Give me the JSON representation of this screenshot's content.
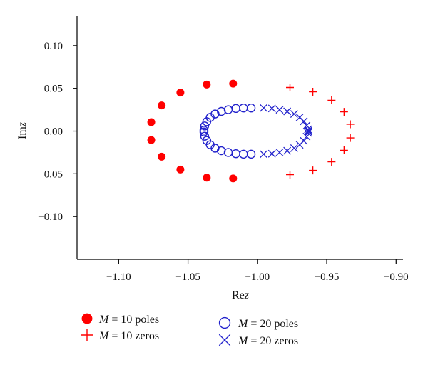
{
  "chart_data": {
    "type": "scatter",
    "xlabel": {
      "prefix": "Re",
      "var": "z"
    },
    "ylabel": {
      "prefix": "Im",
      "var": "z"
    },
    "xlim": [
      -1.13,
      -0.895
    ],
    "ylim": [
      -0.15,
      0.135
    ],
    "xticks": [
      -1.1,
      -1.05,
      -1.0,
      -0.95,
      -0.9
    ],
    "xtick_labels": [
      "−1.10",
      "−1.05",
      "−1.00",
      "−0.95",
      "−0.90"
    ],
    "yticks": [
      0.1,
      0.05,
      0.0,
      -0.05,
      -0.1
    ],
    "ytick_labels": [
      "0.10",
      "0.05",
      "0.00",
      "−0.05",
      "−0.10"
    ],
    "grid": false,
    "legend_position": "bottom",
    "series": [
      {
        "name": "M = 10 poles",
        "legend": {
          "var": "M",
          "rest": " = 10 poles"
        },
        "marker": "filled-circle",
        "color": "#ff0000",
        "points": [
          [
            -1.0175,
            0.0555
          ],
          [
            -1.0365,
            0.0545
          ],
          [
            -1.0555,
            0.045
          ],
          [
            -1.069,
            0.03
          ],
          [
            -1.0765,
            0.0105
          ],
          [
            -1.0765,
            -0.0105
          ],
          [
            -1.069,
            -0.03
          ],
          [
            -1.0555,
            -0.045
          ],
          [
            -1.0365,
            -0.0545
          ],
          [
            -1.0175,
            -0.0555
          ]
        ]
      },
      {
        "name": "M = 10 zeros",
        "legend": {
          "var": "M",
          "rest": " = 10 zeros"
        },
        "marker": "plus",
        "color": "#ff0000",
        "points": [
          [
            -0.9765,
            0.051
          ],
          [
            -0.96,
            0.046
          ],
          [
            -0.9465,
            0.036
          ],
          [
            -0.9375,
            0.0225
          ],
          [
            -0.933,
            0.008
          ],
          [
            -0.933,
            -0.008
          ],
          [
            -0.9375,
            -0.0225
          ],
          [
            -0.9465,
            -0.036
          ],
          [
            -0.96,
            -0.046
          ],
          [
            -0.9765,
            -0.051
          ]
        ]
      },
      {
        "name": "M = 20 poles",
        "legend": {
          "var": "M",
          "rest": " = 20 poles"
        },
        "marker": "open-circle",
        "color": "#2222cc",
        "points": [
          [
            -1.0045,
            0.027
          ],
          [
            -1.01,
            0.027
          ],
          [
            -1.0155,
            0.0265
          ],
          [
            -1.021,
            0.025
          ],
          [
            -1.026,
            0.023
          ],
          [
            -1.0305,
            0.02
          ],
          [
            -1.034,
            0.016
          ],
          [
            -1.0365,
            0.011
          ],
          [
            -1.038,
            0.006
          ],
          [
            -1.0385,
            0.001
          ],
          [
            -1.0385,
            -0.001
          ],
          [
            -1.038,
            -0.006
          ],
          [
            -1.0365,
            -0.011
          ],
          [
            -1.034,
            -0.016
          ],
          [
            -1.0305,
            -0.02
          ],
          [
            -1.026,
            -0.023
          ],
          [
            -1.021,
            -0.025
          ],
          [
            -1.0155,
            -0.0265
          ],
          [
            -1.01,
            -0.027
          ],
          [
            -1.0045,
            -0.027
          ]
        ]
      },
      {
        "name": "M = 20 zeros",
        "legend": {
          "var": "M",
          "rest": " = 20 zeros"
        },
        "marker": "x",
        "color": "#2222cc",
        "points": [
          [
            -0.9955,
            0.027
          ],
          [
            -0.9895,
            0.0265
          ],
          [
            -0.984,
            0.025
          ],
          [
            -0.9785,
            0.023
          ],
          [
            -0.9735,
            0.02
          ],
          [
            -0.9695,
            0.016
          ],
          [
            -0.9665,
            0.0115
          ],
          [
            -0.9645,
            0.0065
          ],
          [
            -0.9635,
            0.002
          ],
          [
            -0.9632,
            0.0005
          ],
          [
            -0.9632,
            -0.0005
          ],
          [
            -0.9635,
            -0.002
          ],
          [
            -0.9645,
            -0.0065
          ],
          [
            -0.9665,
            -0.0115
          ],
          [
            -0.9695,
            -0.016
          ],
          [
            -0.9735,
            -0.02
          ],
          [
            -0.9785,
            -0.023
          ],
          [
            -0.984,
            -0.025
          ],
          [
            -0.9895,
            -0.0265
          ],
          [
            -0.9955,
            -0.027
          ]
        ]
      }
    ]
  }
}
